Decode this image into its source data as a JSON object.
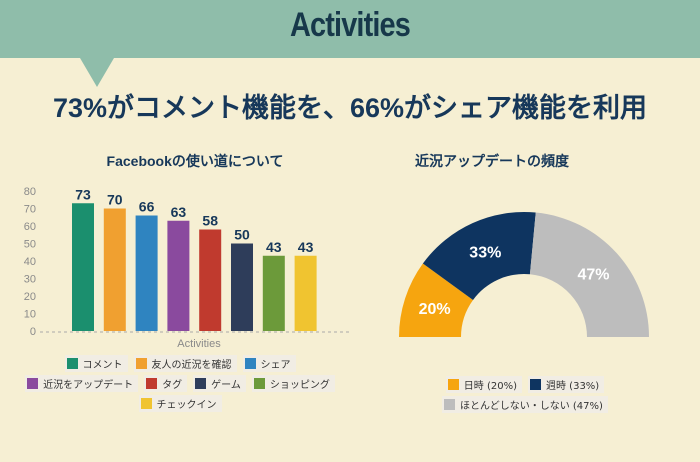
{
  "header": {
    "title": "Activities"
  },
  "headline": "73%がコメント機能を、66%がシェア機能を利用",
  "chart_data": [
    {
      "type": "bar",
      "title": "Facebookの使い道について",
      "xlabel": "Activities",
      "ylabel": "",
      "ylim": [
        0,
        80
      ],
      "yticks": [
        0,
        10,
        20,
        30,
        40,
        50,
        60,
        70,
        80
      ],
      "categories": [
        "コメント",
        "友人の近況を確認",
        "シェア",
        "近況をアップデート",
        "タグ",
        "ゲーム",
        "ショッピング",
        "チェックイン"
      ],
      "values": [
        73,
        70,
        66,
        63,
        58,
        50,
        43,
        43
      ],
      "colors": [
        "#1b8f6e",
        "#f0a030",
        "#2f84c0",
        "#8a4a9e",
        "#c03a2e",
        "#2e3d5a",
        "#6c9a3a",
        "#f0c430"
      ],
      "legend": "bottom"
    },
    {
      "type": "pie",
      "variant": "semi-donut",
      "title": "近況アップデートの頻度",
      "categories": [
        "日時 (20%)",
        "週時 (33%)",
        "ほとんどしない・しない (47%)"
      ],
      "values": [
        20,
        33,
        47
      ],
      "labels": [
        "20%",
        "33%",
        "47%"
      ],
      "colors": [
        "#f6a50f",
        "#0e3460",
        "#bdbdbd"
      ],
      "legend": "bottom"
    }
  ]
}
